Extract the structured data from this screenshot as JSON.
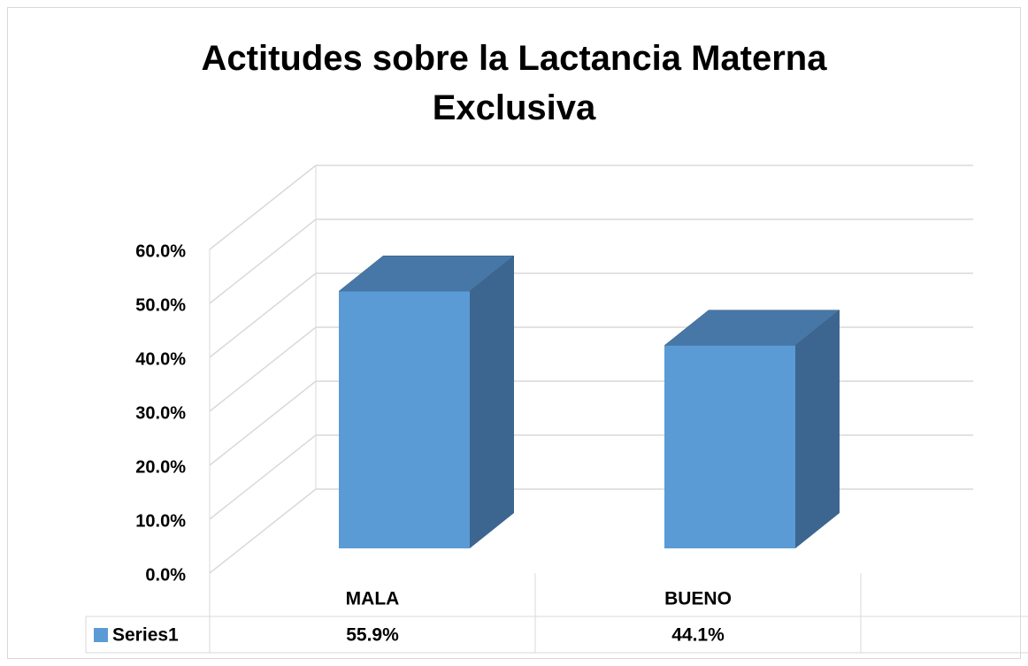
{
  "chart_data": {
    "type": "bar3d",
    "title": "Actitudes sobre la Lactancia Materna Exclusiva",
    "categories": [
      "MALA",
      "BUENO"
    ],
    "series": [
      {
        "name": "Series1",
        "color": "#5b9bd5",
        "values": [
          55.9,
          44.1
        ],
        "value_labels": [
          "55.9%",
          "44.1%"
        ]
      }
    ],
    "ylim": [
      0,
      60
    ],
    "yticks": [
      {
        "value": 0,
        "label": "0.0%"
      },
      {
        "value": 10,
        "label": "10.0%"
      },
      {
        "value": 20,
        "label": "20.0%"
      },
      {
        "value": 30,
        "label": "30.0%"
      },
      {
        "value": 40,
        "label": "40.0%"
      },
      {
        "value": 50,
        "label": "50.0%"
      },
      {
        "value": 60,
        "label": "60.0%"
      }
    ],
    "grid": true,
    "legend": "data-table"
  }
}
